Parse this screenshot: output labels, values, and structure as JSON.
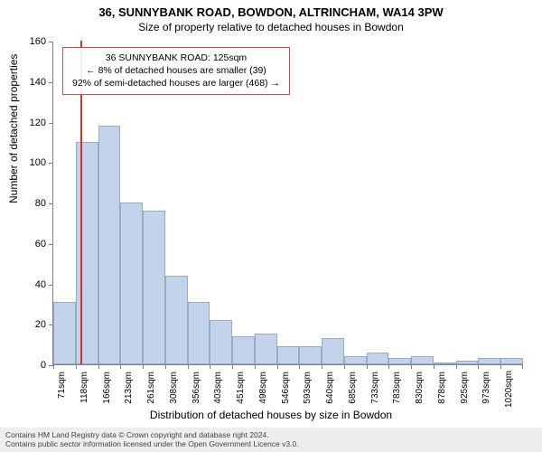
{
  "title": "36, SUNNYBANK ROAD, BOWDON, ALTRINCHAM, WA14 3PW",
  "subtitle": "Size of property relative to detached houses in Bowdon",
  "chart": {
    "type": "histogram",
    "ylabel": "Number of detached properties",
    "xlabel": "Distribution of detached houses by size in Bowdon",
    "y_axis": {
      "min": 0,
      "max": 160,
      "step": 20,
      "fontsize": 11
    },
    "x_ticks": [
      "71sqm",
      "118sqm",
      "166sqm",
      "213sqm",
      "261sqm",
      "308sqm",
      "356sqm",
      "403sqm",
      "451sqm",
      "498sqm",
      "546sqm",
      "593sqm",
      "640sqm",
      "685sqm",
      "733sqm",
      "783sqm",
      "830sqm",
      "878sqm",
      "925sqm",
      "973sqm",
      "1020sqm"
    ],
    "values": [
      31,
      110,
      118,
      80,
      76,
      44,
      31,
      22,
      14,
      15,
      9,
      9,
      13,
      4,
      6,
      3,
      4,
      1,
      2,
      3,
      3
    ],
    "bar_fill": "#c4d3ec",
    "bar_stroke": "#98abc5",
    "highlight": {
      "x_value_sqm": 125,
      "x_min_sqm": 71,
      "x_max_sqm": 1020,
      "color": "#d43131"
    },
    "info_box": {
      "lines": [
        "36 SUNNYBANK ROAD: 125sqm",
        "← 8% of detached houses are smaller (39)",
        "92% of semi-detached houses are larger (468) →"
      ],
      "border_color": "#c05050",
      "fontsize": 10.5
    },
    "background_color": "#ffffff",
    "axis_color": "#808080"
  },
  "footer": {
    "line1": "Contains HM Land Registry data © Crown copyright and database right 2024.",
    "line2": "Contains public sector information licensed under the Open Government Licence v3.0.",
    "background": "#eeeeee",
    "color": "#444444"
  }
}
